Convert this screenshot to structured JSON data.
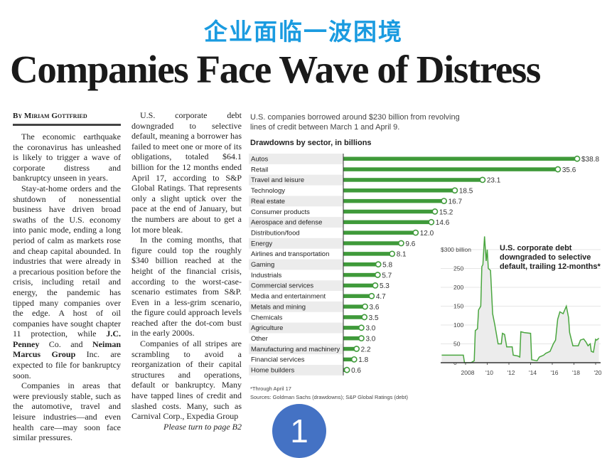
{
  "cn_title": "企业面临一波困境",
  "headline": "Companies Face Wave of Distress",
  "byline": "By Miriam Gottfried",
  "article": {
    "col1": [
      [
        {
          "t": "The economic earthquake the coronavirus has unleashed is likely to trigger a wave of corporate distress and bankruptcy unseen in years."
        }
      ],
      [
        {
          "t": "Stay-at-home orders and the shutdown of nonessential business have driven broad swaths of the U.S. economy into panic mode, ending a long period of calm as markets rose and cheap capital abounded. In industries that were already in a precarious position before the crisis, including retail and energy, the pandemic has tipped many companies over the edge. A host of oil companies have sought chapter 11 protection, while "
        },
        {
          "t": "J.C. Penney",
          "b": true
        },
        {
          "t": " Co. and "
        },
        {
          "t": "Neiman Marcus Group",
          "b": true
        },
        {
          "t": " Inc. are expected to file for bankruptcy soon."
        }
      ],
      [
        {
          "t": "Companies in areas that were previously stable, such as the automotive, travel and leisure industries—and even health care—may soon face similar pressures."
        }
      ]
    ],
    "col2": [
      "U.S. corporate debt downgraded to selective default, meaning a borrower has failed to meet one or more of its obligations, totaled $64.1 billion for the 12 months ended April 17, according to S&P Global Ratings. That represents only a slight uptick over the pace at the end of January, but the numbers are about to get a lot more bleak.",
      "In the coming months, that figure could top the roughly $340 billion reached at the height of the financial crisis, according to the worst-case-scenario estimates from S&P. Even in a less-grim scenario, the figure could approach levels reached after the dot-com bust in the early 2000s.",
      "Companies of all stripes are scrambling to avoid a reorganization of their capital structures and operations, default or bankruptcy. Many have tapped lines of credit and slashed costs. Many, such as Carnival Corp., Expedia Group"
    ],
    "turn": "Please turn to page B2"
  },
  "chart_intro": "U.S. companies borrowed around $230 billion from revolving lines of credit between March 1 and April 9.",
  "footnote": "*Through April 17",
  "sources": "Sources: Goldman Sachs (drawdowns); S&P Global Ratings (debt)",
  "badge": "1",
  "colors": {
    "bar": "#3f9a3a",
    "title_blue": "#1a9be0",
    "badge": "#4472c4"
  },
  "chart_data": [
    {
      "type": "bar",
      "orientation": "horizontal",
      "title": "Drawdowns by sector, in billions",
      "categories": [
        "Autos",
        "Retail",
        "Travel and leisure",
        "Technology",
        "Real estate",
        "Consumer products",
        "Aerospace and defense",
        "Distribution/food",
        "Energy",
        "Airlines and transportation",
        "Gaming",
        "Industrials",
        "Commercial services",
        "Media and entertainment",
        "Metals and mining",
        "Chemicals",
        "Agriculture",
        "Other",
        "Manufacturing and machinery",
        "Financial services",
        "Home builders"
      ],
      "values": [
        38.8,
        35.6,
        23.1,
        18.5,
        16.7,
        15.2,
        14.6,
        12.0,
        9.6,
        8.1,
        5.8,
        5.7,
        5.3,
        4.7,
        3.6,
        3.5,
        3.0,
        3.0,
        2.2,
        1.8,
        0.6
      ],
      "labels": [
        "$38.8",
        "35.6",
        "23.1",
        "18.5",
        "16.7",
        "15.2",
        "14.6",
        "12.0",
        "9.6",
        "8.1",
        "5.8",
        "5.7",
        "5.3",
        "4.7",
        "3.6",
        "3.5",
        "3.0",
        "3.0",
        "2.2",
        "1.8",
        "0.6"
      ],
      "xlim": [
        0,
        40
      ]
    },
    {
      "type": "area",
      "title": "U.S. corporate debt downgraded to selective default, trailing 12-months*",
      "ylim": [
        0,
        300
      ],
      "xlim": [
        2005.5,
        2020.5
      ],
      "yticks": [
        0,
        50,
        100,
        150,
        200,
        250,
        300
      ],
      "ytick_labels": [
        "0",
        "50",
        "100",
        "150",
        "200",
        "250",
        "$300 billion"
      ],
      "xticks": [
        2008,
        2010,
        2012,
        2014,
        2016,
        2018,
        2020
      ],
      "xtick_labels": [
        "2008",
        "'10",
        "'12",
        "'14",
        "'16",
        "'18",
        "'20"
      ],
      "x": [
        2005.8,
        2007.8,
        2007.9,
        2008.5,
        2008.8,
        2008.9,
        2009.1,
        2009.2,
        2009.4,
        2009.5,
        2009.6,
        2009.75,
        2009.9,
        2010.0,
        2010.1,
        2010.3,
        2010.5,
        2010.7,
        2011.0,
        2011.3,
        2011.4,
        2011.6,
        2011.8,
        2012.3,
        2012.4,
        2012.8,
        2013.0,
        2013.1,
        2013.4,
        2014.0,
        2014.1,
        2014.6,
        2014.8,
        2015.2,
        2015.4,
        2015.8,
        2016.1,
        2016.3,
        2016.5,
        2016.7,
        2017.0,
        2017.3,
        2017.5,
        2017.6,
        2017.9,
        2018.4,
        2018.6,
        2018.9,
        2019.1,
        2019.3,
        2019.5,
        2019.6,
        2019.8,
        2020.0,
        2020.1,
        2020.3
      ],
      "y": [
        20,
        20,
        0,
        0,
        5,
        85,
        90,
        140,
        150,
        255,
        260,
        335,
        270,
        300,
        250,
        245,
        130,
        100,
        50,
        50,
        78,
        75,
        42,
        42,
        20,
        18,
        15,
        82,
        80,
        78,
        8,
        5,
        15,
        20,
        25,
        30,
        50,
        60,
        115,
        135,
        130,
        150,
        120,
        80,
        45,
        45,
        60,
        63,
        55,
        45,
        50,
        30,
        28,
        62,
        60,
        65
      ]
    }
  ]
}
